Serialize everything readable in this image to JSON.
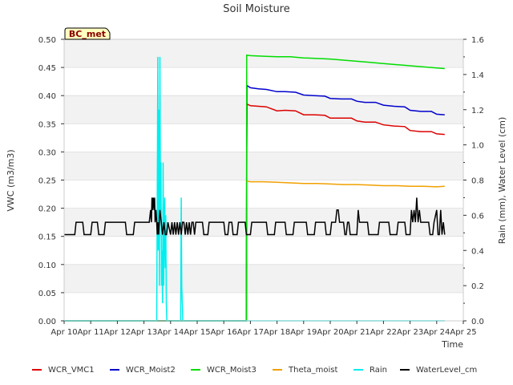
{
  "chart_data": {
    "type": "line",
    "title": "Soil Moisture",
    "site_label": "BC_met",
    "xlabel": "Time",
    "ylabel_left": "VWC (m3/m3)",
    "ylabel_right": "Rain (mm), Water Level (cm)",
    "xlim": [
      10,
      25
    ],
    "ylim_left": [
      0,
      0.5
    ],
    "ylim_right": [
      0,
      1.6
    ],
    "x_ticks": [
      10,
      11,
      12,
      13,
      14,
      15,
      16,
      17,
      18,
      19,
      20,
      21,
      22,
      23,
      24,
      25
    ],
    "x_tick_labels": [
      "Apr 10",
      "Apr 11",
      "Apr 12",
      "Apr 13",
      "Apr 14",
      "Apr 15",
      "Apr 16",
      "Apr 17",
      "Apr 18",
      "Apr 19",
      "Apr 20",
      "Apr 21",
      "Apr 22",
      "Apr 23",
      "Apr 24",
      "Apr 25"
    ],
    "y_ticks_left": [
      0.0,
      0.05,
      0.1,
      0.15,
      0.2,
      0.25,
      0.3,
      0.35,
      0.4,
      0.45,
      0.5
    ],
    "y_tick_labels_left": [
      "0.00",
      "0.05",
      "0.10",
      "0.15",
      "0.20",
      "0.25",
      "0.30",
      "0.35",
      "0.40",
      "0.45",
      "0.50"
    ],
    "y_ticks_right": [
      0.0,
      0.2,
      0.4,
      0.6,
      0.8,
      1.0,
      1.2,
      1.4,
      1.6
    ],
    "y_tick_labels_right": [
      "0.0",
      "0.2",
      "0.4",
      "0.6",
      "0.8",
      "1.0",
      "1.2",
      "1.4",
      "1.6"
    ],
    "legend_position": "bottom",
    "series": [
      {
        "name": "WCR_VMC1",
        "color": "#dd0000",
        "axis": "left",
        "x": [
          10.0,
          16.85,
          16.86,
          16.87,
          17.0,
          17.3,
          17.6,
          18.0,
          18.3,
          18.7,
          19.0,
          19.4,
          19.8,
          20.0,
          20.4,
          20.8,
          21.0,
          21.3,
          21.7,
          22.0,
          22.4,
          22.8,
          23.0,
          23.4,
          23.8,
          24.0,
          24.3
        ],
        "y": [
          0.0,
          0.0,
          0.305,
          0.385,
          0.382,
          0.381,
          0.38,
          0.373,
          0.374,
          0.373,
          0.366,
          0.366,
          0.365,
          0.36,
          0.36,
          0.36,
          0.355,
          0.353,
          0.353,
          0.348,
          0.346,
          0.345,
          0.338,
          0.336,
          0.336,
          0.332,
          0.331
        ]
      },
      {
        "name": "WCR_Moist2",
        "color": "#0000cc",
        "axis": "left",
        "x": [
          10.0,
          16.85,
          16.86,
          16.87,
          17.0,
          17.3,
          17.6,
          18.0,
          18.3,
          18.7,
          19.0,
          19.4,
          19.8,
          20.0,
          20.4,
          20.8,
          21.0,
          21.3,
          21.7,
          22.0,
          22.4,
          22.8,
          23.0,
          23.4,
          23.8,
          24.0,
          24.3
        ],
        "y": [
          0.0,
          0.0,
          0.3,
          0.418,
          0.414,
          0.412,
          0.411,
          0.407,
          0.407,
          0.406,
          0.401,
          0.4,
          0.399,
          0.395,
          0.394,
          0.394,
          0.39,
          0.388,
          0.388,
          0.383,
          0.381,
          0.38,
          0.374,
          0.372,
          0.372,
          0.367,
          0.366
        ]
      },
      {
        "name": "WCR_Moist3",
        "color": "#00dd00",
        "axis": "left",
        "x": [
          10.0,
          16.85,
          16.86,
          17.0,
          17.5,
          18.0,
          18.5,
          19.0,
          19.5,
          20.0,
          20.5,
          21.0,
          21.5,
          22.0,
          22.5,
          23.0,
          23.5,
          24.0,
          24.3
        ],
        "y": [
          0.0,
          0.0,
          0.472,
          0.471,
          0.47,
          0.469,
          0.469,
          0.467,
          0.466,
          0.465,
          0.463,
          0.461,
          0.459,
          0.457,
          0.455,
          0.453,
          0.451,
          0.449,
          0.448
        ]
      },
      {
        "name": "Theta_moist",
        "color": "#f0a000",
        "axis": "left",
        "x": [
          16.86,
          17.0,
          17.5,
          18.0,
          18.5,
          19.0,
          19.5,
          20.0,
          20.5,
          21.0,
          21.5,
          22.0,
          22.5,
          23.0,
          23.5,
          24.0,
          24.3
        ],
        "y": [
          0.248,
          0.247,
          0.247,
          0.246,
          0.245,
          0.244,
          0.244,
          0.243,
          0.242,
          0.242,
          0.241,
          0.24,
          0.24,
          0.239,
          0.239,
          0.238,
          0.239
        ]
      },
      {
        "name": "Rain",
        "color": "#00eeee",
        "axis": "right",
        "x": [
          10.0,
          13.48,
          13.5,
          13.52,
          13.54,
          13.56,
          13.58,
          13.6,
          13.62,
          13.64,
          13.66,
          13.68,
          13.7,
          13.72,
          13.74,
          13.76,
          13.78,
          13.8,
          13.82,
          13.84,
          13.86,
          13.88,
          13.9,
          14.1,
          14.38,
          14.4,
          14.42,
          14.44,
          14.46,
          14.48,
          24.3
        ],
        "y": [
          0.0,
          0.0,
          0.7,
          1.5,
          0.4,
          1.2,
          0.2,
          1.5,
          0.6,
          0.9,
          0.2,
          0.4,
          0.1,
          0.9,
          0.2,
          0.5,
          0.7,
          0.3,
          0.6,
          0.1,
          0.0,
          0.0,
          0.0,
          0.0,
          0.0,
          0.7,
          0.2,
          0.1,
          0.0,
          0.0,
          0.0
        ]
      },
      {
        "name": "WaterLevel_cm",
        "color": "#000000",
        "axis": "right",
        "x": [
          10.0,
          10.4,
          10.45,
          10.7,
          10.75,
          11.0,
          11.05,
          11.25,
          11.3,
          11.5,
          11.55,
          12.3,
          12.35,
          12.6,
          12.65,
          13.2,
          13.25,
          13.28,
          13.3,
          13.32,
          13.35,
          13.38,
          13.4,
          13.42,
          13.45,
          13.48,
          13.5,
          13.52,
          13.55,
          13.6,
          13.65,
          13.7,
          13.75,
          13.8,
          13.85,
          13.9,
          14.0,
          14.05,
          14.1,
          14.15,
          14.2,
          14.25,
          14.3,
          14.35,
          14.4,
          14.45,
          14.5,
          14.55,
          14.6,
          14.65,
          14.7,
          14.75,
          14.8,
          14.85,
          14.9,
          14.95,
          15.0,
          15.05,
          15.2,
          15.25,
          15.4,
          15.45,
          15.6,
          15.65,
          16.0,
          16.05,
          16.15,
          16.2,
          16.3,
          16.35,
          16.5,
          16.55,
          16.8,
          16.85,
          17.0,
          17.05,
          17.2,
          17.25,
          17.6,
          17.65,
          17.9,
          17.95,
          18.3,
          18.35,
          18.6,
          18.65,
          19.1,
          19.15,
          19.4,
          19.45,
          19.8,
          19.85,
          20.0,
          20.05,
          20.2,
          20.25,
          20.3,
          20.35,
          20.5,
          20.55,
          20.6,
          20.65,
          20.7,
          20.75,
          21.0,
          21.05,
          21.1,
          21.15,
          21.4,
          21.45,
          21.8,
          21.85,
          22.2,
          22.25,
          22.5,
          22.55,
          22.8,
          22.85,
          23.0,
          23.05,
          23.1,
          23.15,
          23.2,
          23.25,
          23.3,
          23.35,
          23.4,
          23.45,
          23.7,
          23.75,
          23.85,
          23.9,
          24.0,
          24.05,
          24.1,
          24.15,
          24.2,
          24.25,
          24.3
        ],
        "y": [
          0.49,
          0.49,
          0.56,
          0.56,
          0.49,
          0.49,
          0.56,
          0.56,
          0.49,
          0.49,
          0.56,
          0.56,
          0.49,
          0.49,
          0.56,
          0.56,
          0.63,
          0.56,
          0.7,
          0.63,
          0.7,
          0.63,
          0.7,
          0.56,
          0.63,
          0.56,
          0.49,
          0.56,
          0.49,
          0.63,
          0.56,
          0.49,
          0.56,
          0.49,
          0.49,
          0.56,
          0.49,
          0.56,
          0.49,
          0.56,
          0.49,
          0.56,
          0.49,
          0.56,
          0.49,
          0.56,
          0.56,
          0.49,
          0.56,
          0.49,
          0.56,
          0.49,
          0.56,
          0.56,
          0.49,
          0.56,
          0.56,
          0.56,
          0.56,
          0.49,
          0.49,
          0.56,
          0.56,
          0.56,
          0.56,
          0.49,
          0.49,
          0.56,
          0.56,
          0.49,
          0.49,
          0.56,
          0.56,
          0.49,
          0.49,
          0.56,
          0.56,
          0.56,
          0.56,
          0.49,
          0.49,
          0.56,
          0.56,
          0.49,
          0.49,
          0.56,
          0.56,
          0.49,
          0.49,
          0.56,
          0.56,
          0.49,
          0.49,
          0.56,
          0.56,
          0.63,
          0.63,
          0.56,
          0.56,
          0.49,
          0.49,
          0.56,
          0.56,
          0.49,
          0.49,
          0.63,
          0.56,
          0.56,
          0.56,
          0.49,
          0.49,
          0.56,
          0.56,
          0.49,
          0.49,
          0.56,
          0.56,
          0.49,
          0.49,
          0.63,
          0.56,
          0.63,
          0.56,
          0.7,
          0.56,
          0.63,
          0.56,
          0.56,
          0.56,
          0.49,
          0.49,
          0.56,
          0.63,
          0.49,
          0.49,
          0.63,
          0.49,
          0.56,
          0.49
        ]
      }
    ]
  }
}
